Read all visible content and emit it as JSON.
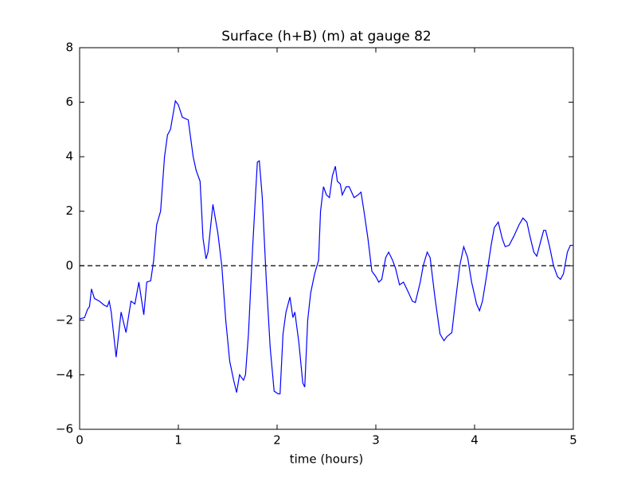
{
  "chart_data": {
    "type": "line",
    "title": "Surface (h+B) (m) at gauge 82",
    "xlabel": "time (hours)",
    "x": [
      0,
      0.05,
      0.08,
      0.1,
      0.12,
      0.15,
      0.2,
      0.25,
      0.28,
      0.3,
      0.32,
      0.37,
      0.42,
      0.47,
      0.52,
      0.56,
      0.6,
      0.65,
      0.68,
      0.72,
      0.75,
      0.78,
      0.82,
      0.86,
      0.89,
      0.92,
      0.97,
      1.0,
      1.04,
      1.1,
      1.15,
      1.18,
      1.22,
      1.25,
      1.28,
      1.3,
      1.35,
      1.4,
      1.44,
      1.48,
      1.52,
      1.56,
      1.59,
      1.62,
      1.66,
      1.68,
      1.71,
      1.75,
      1.78,
      1.8,
      1.82,
      1.85,
      1.89,
      1.93,
      1.97,
      2.01,
      2.03,
      2.06,
      2.09,
      2.13,
      2.16,
      2.18,
      2.22,
      2.26,
      2.28,
      2.31,
      2.34,
      2.38,
      2.42,
      2.44,
      2.47,
      2.5,
      2.53,
      2.56,
      2.59,
      2.61,
      2.64,
      2.66,
      2.7,
      2.73,
      2.78,
      2.82,
      2.85,
      2.88,
      2.92,
      2.96,
      3.0,
      3.03,
      3.06,
      3.1,
      3.13,
      3.17,
      3.2,
      3.24,
      3.28,
      3.32,
      3.37,
      3.4,
      3.45,
      3.48,
      3.52,
      3.55,
      3.6,
      3.65,
      3.69,
      3.72,
      3.77,
      3.8,
      3.85,
      3.89,
      3.93,
      3.97,
      4.02,
      4.05,
      4.08,
      4.12,
      4.17,
      4.2,
      4.24,
      4.28,
      4.31,
      4.35,
      4.4,
      4.45,
      4.49,
      4.53,
      4.56,
      4.6,
      4.63,
      4.67,
      4.7,
      4.72,
      4.76,
      4.8,
      4.84,
      4.87,
      4.9,
      4.94,
      4.97,
      5.0
    ],
    "series": [
      {
        "color": "#0000ff",
        "values": [
          -1.95,
          -1.9,
          -1.6,
          -1.5,
          -0.85,
          -1.2,
          -1.3,
          -1.45,
          -1.5,
          -1.3,
          -1.7,
          -3.35,
          -1.7,
          -2.45,
          -1.3,
          -1.4,
          -0.6,
          -1.8,
          -0.6,
          -0.55,
          0.2,
          1.5,
          2.0,
          4.0,
          4.8,
          5.0,
          6.05,
          5.9,
          5.45,
          5.35,
          4.0,
          3.5,
          3.1,
          1.0,
          0.25,
          0.5,
          2.25,
          1.2,
          0.0,
          -2.0,
          -3.5,
          -4.2,
          -4.65,
          -4.0,
          -4.2,
          -4.0,
          -2.5,
          0.5,
          2.5,
          3.8,
          3.85,
          2.5,
          -0.5,
          -3.0,
          -4.6,
          -4.7,
          -4.7,
          -2.5,
          -1.7,
          -1.15,
          -1.9,
          -1.7,
          -2.8,
          -4.3,
          -4.45,
          -2.0,
          -1.0,
          -0.3,
          0.2,
          2.0,
          2.9,
          2.6,
          2.5,
          3.3,
          3.65,
          3.1,
          3.0,
          2.6,
          2.9,
          2.9,
          2.5,
          2.6,
          2.7,
          2.0,
          1.0,
          -0.2,
          -0.4,
          -0.6,
          -0.5,
          0.3,
          0.5,
          0.2,
          -0.1,
          -0.7,
          -0.6,
          -0.9,
          -1.3,
          -1.35,
          -0.6,
          0.0,
          0.5,
          0.3,
          -1.2,
          -2.5,
          -2.75,
          -2.6,
          -2.45,
          -1.5,
          0.0,
          0.7,
          0.3,
          -0.6,
          -1.4,
          -1.65,
          -1.3,
          -0.4,
          0.8,
          1.4,
          1.6,
          1.0,
          0.7,
          0.75,
          1.1,
          1.5,
          1.75,
          1.6,
          1.1,
          0.5,
          0.35,
          0.9,
          1.3,
          1.3,
          0.7,
          0.0,
          -0.4,
          -0.5,
          -0.3,
          0.5,
          0.75,
          0.75
        ]
      }
    ],
    "hline": 0,
    "xlim": [
      0,
      5
    ],
    "xticks": [
      0,
      1,
      2,
      3,
      4,
      5
    ],
    "ylim": [
      -6,
      8
    ],
    "yticks": [
      {
        "value": -6,
        "label": "−6"
      },
      {
        "value": -4,
        "label": "−4"
      },
      {
        "value": -2,
        "label": "−2"
      },
      0,
      2,
      4,
      6,
      8
    ]
  }
}
